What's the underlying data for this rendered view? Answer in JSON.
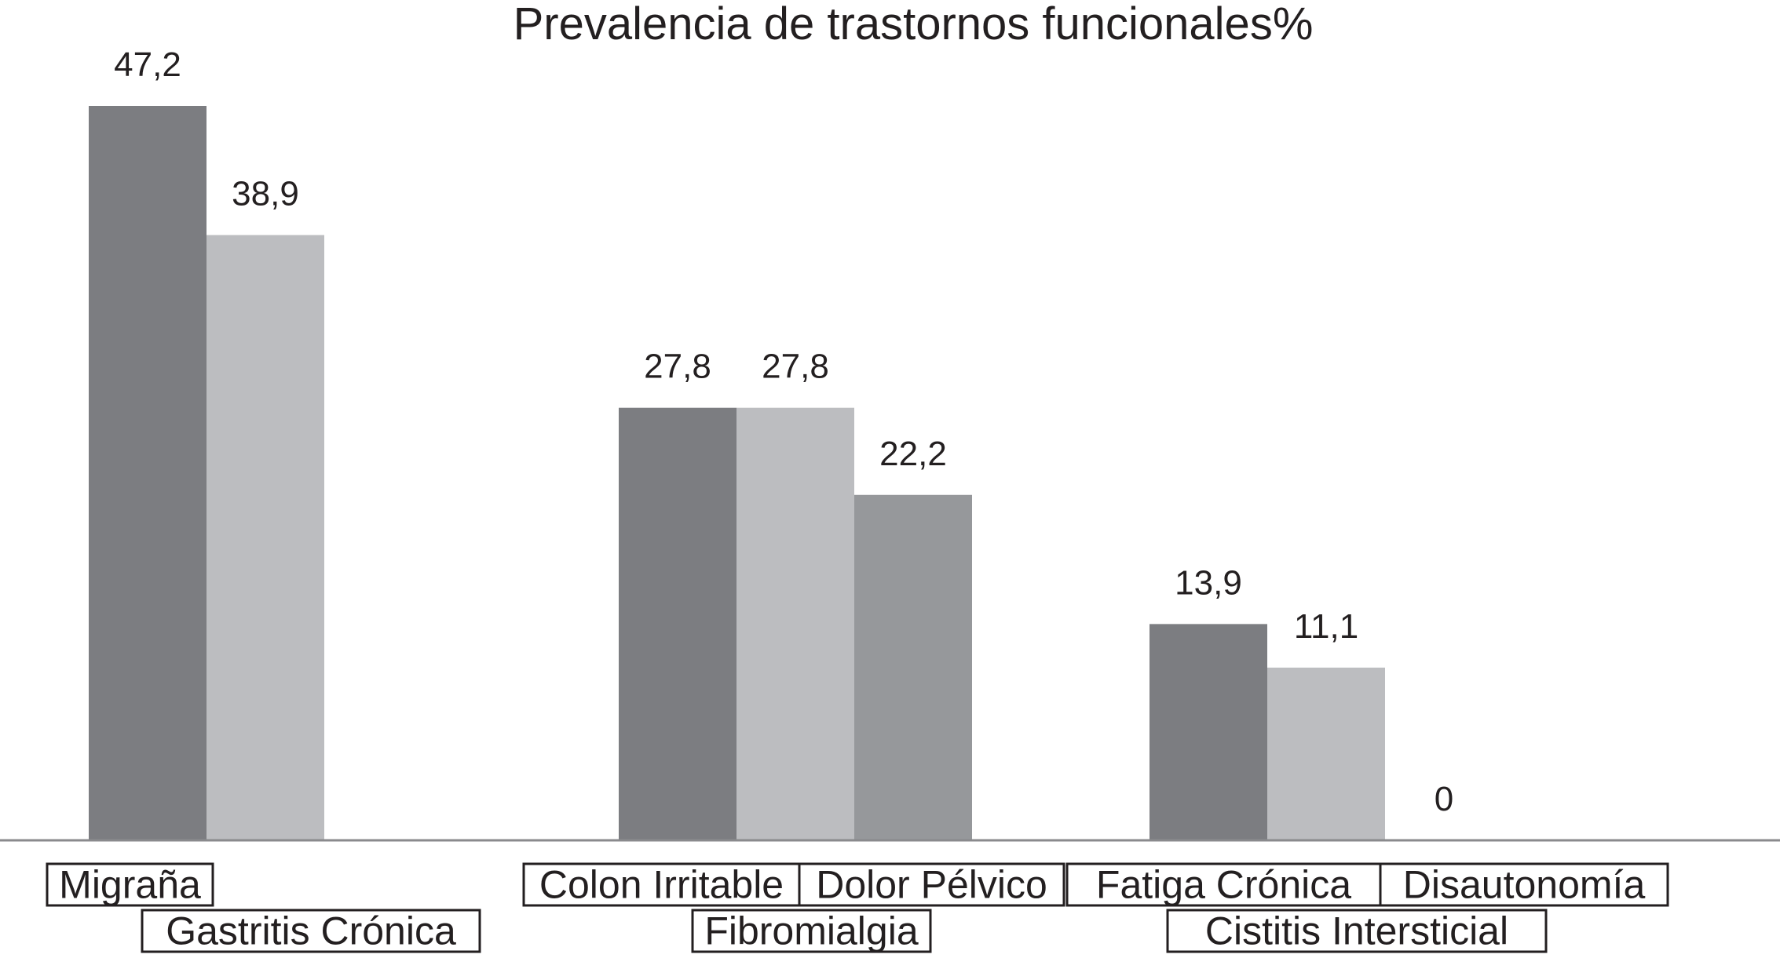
{
  "chart_data": {
    "type": "bar",
    "title": "Prevalencia de trastornos funcionales%",
    "xlabel": "",
    "ylabel": "",
    "ylim": [
      0,
      47.2
    ],
    "grid": false,
    "groups": [
      {
        "bars": [
          {
            "category": "Migraña",
            "value": 47.2,
            "label": "47,2",
            "color": "#7c7d81"
          },
          {
            "category": "Gastritis Crónica",
            "value": 38.9,
            "label": "38,9",
            "color": "#bcbdc0"
          }
        ]
      },
      {
        "bars": [
          {
            "category": "Colon Irritable",
            "value": 27.8,
            "label": "27,8",
            "color": "#7c7d81"
          },
          {
            "category": "Fibromialgia",
            "value": 27.8,
            "label": "27,8",
            "color": "#bcbdc0"
          },
          {
            "category": "Dolor Pélvico",
            "value": 22.2,
            "label": "22,2",
            "color": "#96989b"
          }
        ]
      },
      {
        "bars": [
          {
            "category": "Fatiga Crónica",
            "value": 13.9,
            "label": "13,9",
            "color": "#7c7d81"
          },
          {
            "category": "Cistitis Intersticial",
            "value": 11.1,
            "label": "11,1",
            "color": "#bcbdc0"
          },
          {
            "category": "Disautonomía",
            "value": 0,
            "label": "0",
            "color": "#96989b"
          }
        ]
      }
    ]
  }
}
